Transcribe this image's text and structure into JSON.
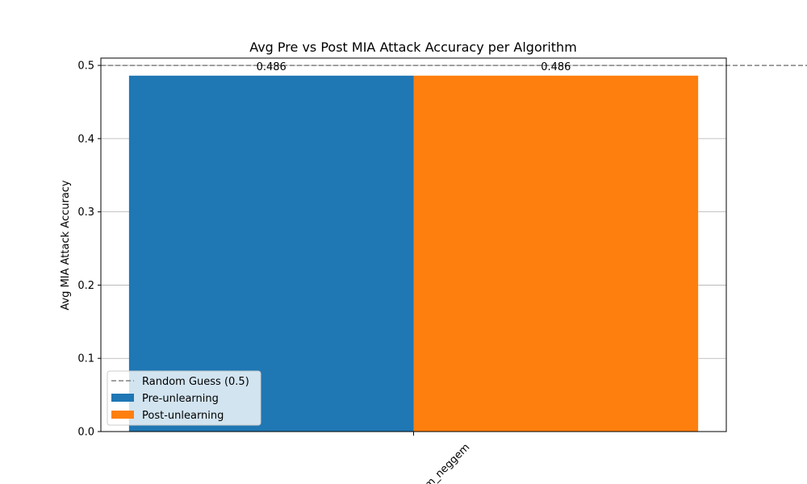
{
  "chart_data": {
    "type": "bar",
    "title": "Avg Pre vs Post MIA Attack Accuracy per Algorithm",
    "xlabel": "",
    "ylabel": "Avg MIA Attack Accuracy",
    "categories": [
      "m_neggem"
    ],
    "series": [
      {
        "name": "Pre-unlearning",
        "values": [
          0.486
        ],
        "color": "#1f77b4"
      },
      {
        "name": "Post-unlearning",
        "values": [
          0.486
        ],
        "color": "#ff7f0e"
      }
    ],
    "data_labels": [
      "0.486",
      "0.486"
    ],
    "reference_line": {
      "name": "Random Guess (0.5)",
      "value": 0.5,
      "color": "#808080",
      "style": "dashed"
    },
    "ylim": [
      0,
      0.51
    ],
    "yticks": [
      "0.0",
      "0.1",
      "0.2",
      "0.3",
      "0.4",
      "0.5"
    ],
    "grid": "y",
    "legend_position": "lower-left"
  }
}
